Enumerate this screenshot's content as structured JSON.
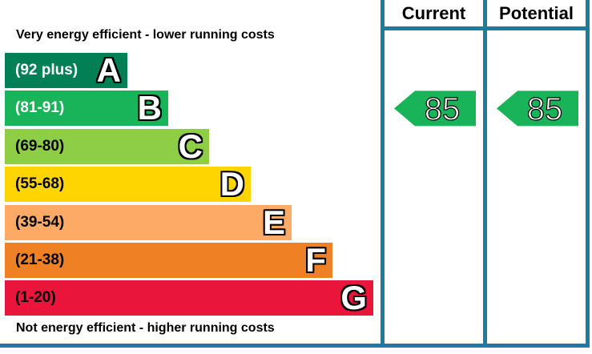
{
  "chart_data": {
    "type": "bar",
    "caption_top": "Very energy efficient - lower running costs",
    "caption_bottom": "Not energy efficient - higher running costs",
    "bands": [
      {
        "letter": "A",
        "range": "(92 plus)",
        "min": 92,
        "max": 100,
        "color": "#008054",
        "text_light": true
      },
      {
        "letter": "B",
        "range": "(81-91)",
        "min": 81,
        "max": 91,
        "color": "#19b459",
        "text_light": true
      },
      {
        "letter": "C",
        "range": "(69-80)",
        "min": 69,
        "max": 80,
        "color": "#8dce46",
        "text_light": false
      },
      {
        "letter": "D",
        "range": "(55-68)",
        "min": 55,
        "max": 68,
        "color": "#ffd500",
        "text_light": false
      },
      {
        "letter": "E",
        "range": "(39-54)",
        "min": 39,
        "max": 54,
        "color": "#fcaa65",
        "text_light": false
      },
      {
        "letter": "F",
        "range": "(21-38)",
        "min": 21,
        "max": 38,
        "color": "#ef8023",
        "text_light": false
      },
      {
        "letter": "G",
        "range": "(1-20)",
        "min": 1,
        "max": 20,
        "color": "#e9153b",
        "text_light": false
      }
    ],
    "columns": [
      {
        "label": "Current",
        "value": 85,
        "band": "B",
        "color": "#19b459"
      },
      {
        "label": "Potential",
        "value": 85,
        "band": "B",
        "color": "#19b459"
      }
    ],
    "frame_color": "#1e7aa3"
  }
}
